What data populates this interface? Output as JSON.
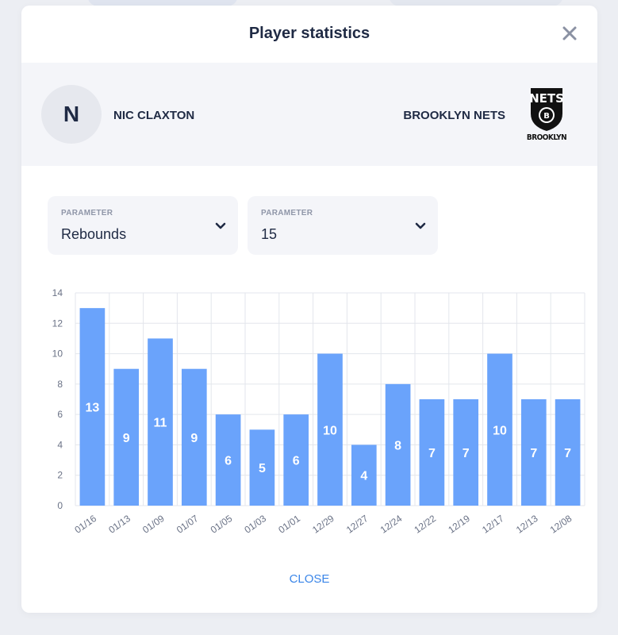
{
  "modal": {
    "title": "Player statistics",
    "close_label": "CLOSE"
  },
  "player": {
    "initial": "N",
    "name": "NIC CLAXTON",
    "team": "BROOKLYN NETS",
    "team_logo_top": "NETS",
    "team_logo_bottom": "BROOKLYN"
  },
  "filters": [
    {
      "label": "PARAMETER",
      "value": "Rebounds"
    },
    {
      "label": "PARAMETER",
      "value": "15"
    }
  ],
  "colors": {
    "bar": "#6aa3fb",
    "bar_label": "#ffffff",
    "grid": "#e3e6ec",
    "axis_text": "#6a7286",
    "accent": "#3b86e8"
  },
  "icons": {
    "close": "close-icon",
    "chevron": "chevron-down-icon"
  },
  "chart_data": {
    "type": "bar",
    "categories": [
      "01/16",
      "01/13",
      "01/09",
      "01/07",
      "01/05",
      "01/03",
      "01/01",
      "12/29",
      "12/27",
      "12/24",
      "12/22",
      "12/19",
      "12/17",
      "12/13",
      "12/08"
    ],
    "values": [
      13,
      9,
      11,
      9,
      6,
      5,
      6,
      10,
      4,
      8,
      7,
      7,
      10,
      7,
      7
    ],
    "yticks": [
      0,
      2,
      4,
      6,
      8,
      10,
      12,
      14
    ],
    "ylim": [
      0,
      14
    ],
    "grid": true,
    "data_labels": true
  }
}
